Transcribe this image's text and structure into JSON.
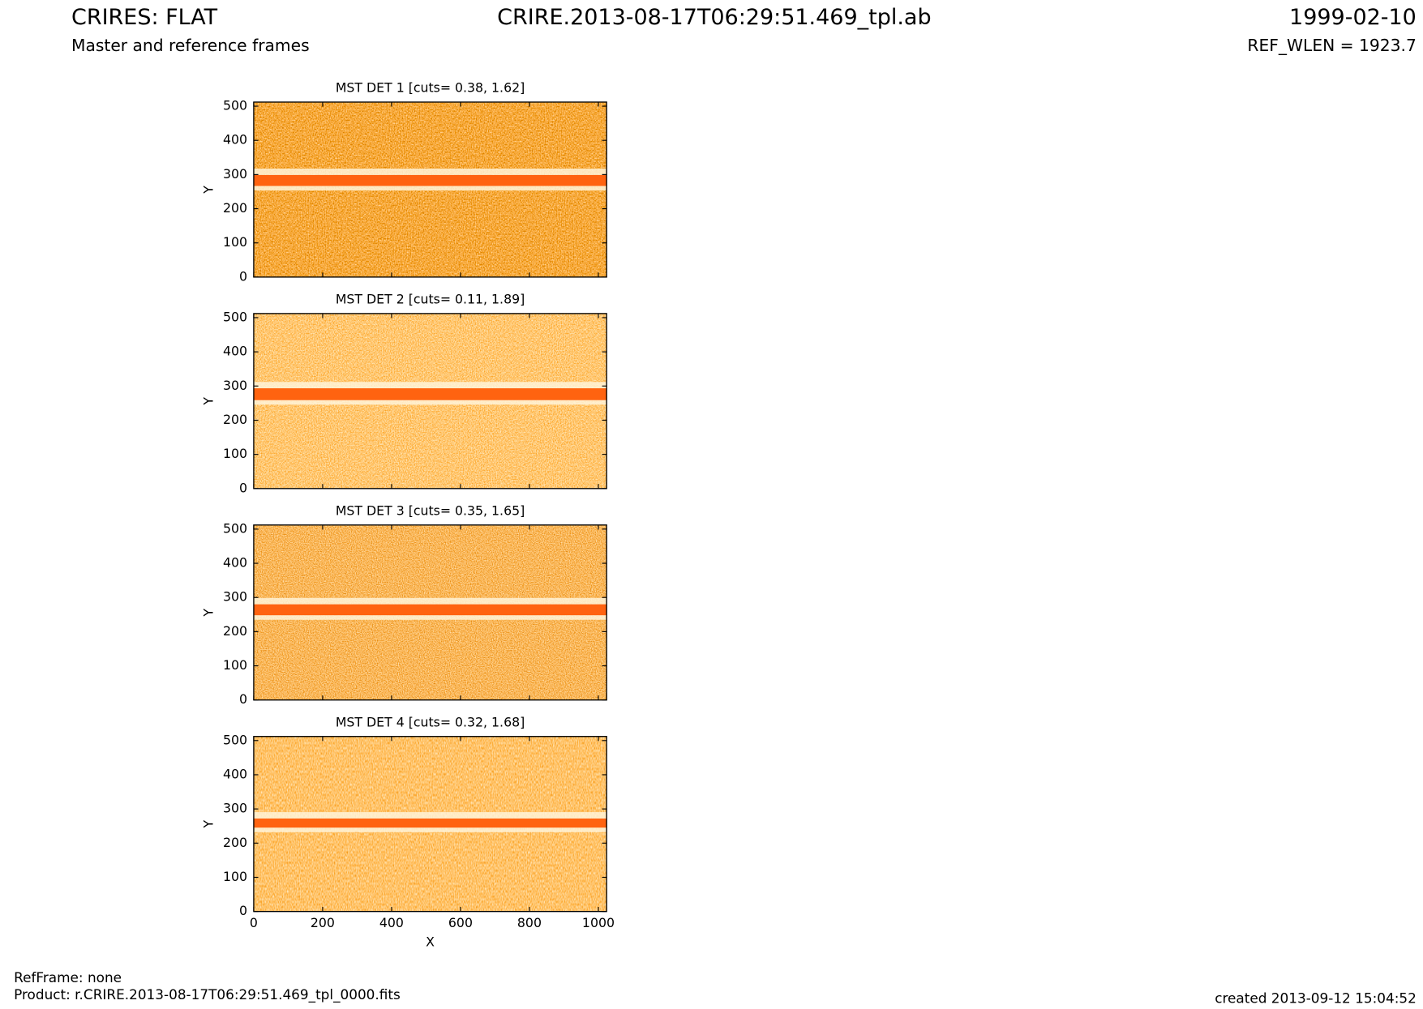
{
  "header": {
    "title": "CRIRES: FLAT",
    "subtitle": "Master and reference frames",
    "file": "CRIRE.2013-08-17T06:29:51.469_tpl.ab",
    "date": "1999-02-10",
    "ref_wlen": "REF_WLEN = 1923.7"
  },
  "footer": {
    "ref_frame": "RefFrame: none",
    "product": "Product: r.CRIRE.2013-08-17T06:29:51.469_tpl_0000.fits",
    "created": "created 2013-09-12 15:04:52"
  },
  "chart_data": [
    {
      "type": "image",
      "title": "MST DET 1 [cuts= 0.38, 1.62]",
      "ylabel": "Y",
      "xlim": [
        0,
        1024
      ],
      "ylim": [
        0,
        512
      ],
      "xticks": [
        0,
        200,
        400,
        600,
        800,
        1000
      ],
      "yticks": [
        0,
        100,
        200,
        300,
        400,
        500
      ]
    },
    {
      "type": "image",
      "title": "MST DET 2 [cuts= 0.11, 1.89]",
      "ylabel": "Y",
      "xlim": [
        0,
        1024
      ],
      "ylim": [
        0,
        512
      ],
      "xticks": [
        0,
        200,
        400,
        600,
        800,
        1000
      ],
      "yticks": [
        0,
        100,
        200,
        300,
        400,
        500
      ]
    },
    {
      "type": "image",
      "title": "MST DET 3 [cuts= 0.35, 1.65]",
      "ylabel": "Y",
      "xlim": [
        0,
        1024
      ],
      "ylim": [
        0,
        512
      ],
      "xticks": [
        0,
        200,
        400,
        600,
        800,
        1000
      ],
      "yticks": [
        0,
        100,
        200,
        300,
        400,
        500
      ]
    },
    {
      "type": "image",
      "title": "MST DET 4 [cuts= 0.32, 1.68]",
      "ylabel": "Y",
      "xlabel": "X",
      "xlim": [
        0,
        1024
      ],
      "ylim": [
        0,
        512
      ],
      "xticks": [
        0,
        200,
        400,
        600,
        800,
        1000
      ],
      "yticks": [
        0,
        100,
        200,
        300,
        400,
        500
      ]
    }
  ]
}
